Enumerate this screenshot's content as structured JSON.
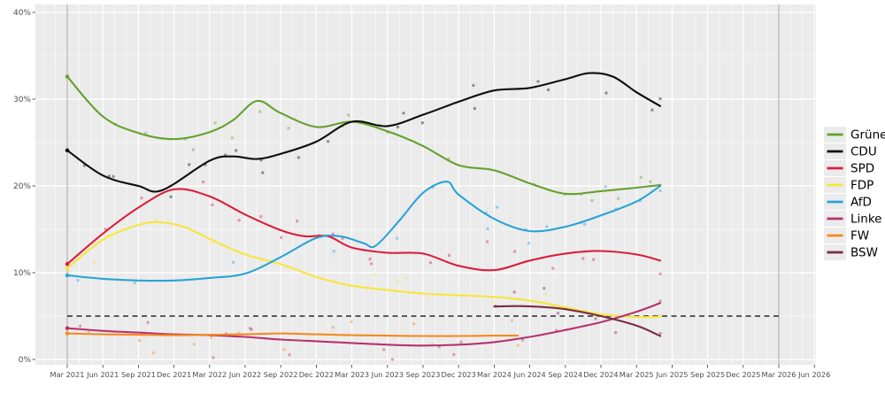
{
  "page": {
    "background": "#FFFFFF"
  },
  "chart_data": {
    "type": "line",
    "title": "",
    "description": "German state election polling trend chart (smoothed party lines with individual poll dots), March 2021 to June 2025, axis extending to June 2026",
    "panel_bg": "#EBEBEB",
    "grid_color": "#FFFFFF",
    "tick_color": "#333333",
    "tick_label_color": "#4D4D4D",
    "x_axis": {
      "tick_months": [
        0,
        3,
        6,
        9,
        12,
        15,
        18,
        21,
        24,
        27,
        30,
        33,
        36,
        39,
        42,
        45,
        48,
        51,
        54,
        57,
        60,
        63
      ],
      "tick_labels": [
        "Mar 2021",
        "Jun 2021",
        "Sep 2021",
        "Dec 2021",
        "Mar 2022",
        "Jun 2022",
        "Sep 2022",
        "Dec 2022",
        "Mar 2023",
        "Jun 2023",
        "Sep 2023",
        "Dec 2023",
        "Mar 2024",
        "Jun 2024",
        "Sep 2024",
        "Dec 2024",
        "Mar 2025",
        "Jun 2025",
        "Sep 2025",
        "Dec 2025",
        "Mar 2026",
        "Jun 2026"
      ]
    },
    "y_axis": {
      "tick_values": [
        0,
        10,
        20,
        30,
        40
      ],
      "tick_labels": [
        "0%",
        "10%",
        "20%",
        "30%",
        "40%"
      ],
      "minor_values": [
        5,
        15,
        25,
        35
      ],
      "ylim": [
        0,
        40
      ]
    },
    "threshold_line": {
      "value": 5,
      "style": "dashed",
      "color": "#2B2B2B",
      "from_month": 0,
      "to_month": 60
    },
    "event_lines": {
      "months": [
        0,
        60
      ],
      "color": "#A6A6A6"
    },
    "scatter": {
      "opacity": 0.42,
      "radius": 1.7,
      "seed": 42,
      "prob": 0.36,
      "y_jitter": 2.2,
      "x_jitter": 1.6
    },
    "series": [
      {
        "id": "gruene",
        "name": "Grüne",
        "color": "#64A12D",
        "points": [
          [
            0,
            32.6
          ],
          [
            3,
            28
          ],
          [
            6,
            26.1
          ],
          [
            9,
            25.4
          ],
          [
            12,
            26.2
          ],
          [
            14,
            27.6
          ],
          [
            16,
            29.8
          ],
          [
            18,
            28.4
          ],
          [
            21,
            26.8
          ],
          [
            24,
            27.4
          ],
          [
            27,
            26.3
          ],
          [
            30,
            24.6
          ],
          [
            33,
            22.4
          ],
          [
            36,
            21.8
          ],
          [
            39,
            20.3
          ],
          [
            42,
            19.1
          ],
          [
            45,
            19.4
          ],
          [
            48,
            19.8
          ],
          [
            50,
            20.1
          ]
        ]
      },
      {
        "id": "cdu",
        "name": "CDU",
        "color": "#0E0E0E",
        "points": [
          [
            0,
            24.1
          ],
          [
            3,
            21.2
          ],
          [
            6,
            20
          ],
          [
            8,
            19.5
          ],
          [
            12,
            22.9
          ],
          [
            14,
            23.4
          ],
          [
            16,
            23.1
          ],
          [
            18,
            23.7
          ],
          [
            21,
            25.1
          ],
          [
            24,
            27.4
          ],
          [
            27,
            26.9
          ],
          [
            30,
            28.2
          ],
          [
            33,
            29.7
          ],
          [
            36,
            31
          ],
          [
            39,
            31.3
          ],
          [
            42,
            32.3
          ],
          [
            44,
            33
          ],
          [
            46,
            32.6
          ],
          [
            48,
            30.8
          ],
          [
            50,
            29.2
          ]
        ]
      },
      {
        "id": "spd",
        "name": "SPD",
        "color": "#D91F3D",
        "points": [
          [
            0,
            11
          ],
          [
            3,
            14.5
          ],
          [
            6,
            17.5
          ],
          [
            9,
            19.6
          ],
          [
            12,
            18.8
          ],
          [
            15,
            16.7
          ],
          [
            18,
            14.9
          ],
          [
            20,
            14.2
          ],
          [
            22,
            14.2
          ],
          [
            24,
            12.9
          ],
          [
            27,
            12.3
          ],
          [
            30,
            12.2
          ],
          [
            33,
            10.8
          ],
          [
            36,
            10.3
          ],
          [
            39,
            11.4
          ],
          [
            42,
            12.2
          ],
          [
            45,
            12.5
          ],
          [
            48,
            12.1
          ],
          [
            50,
            11.4
          ]
        ]
      },
      {
        "id": "fdp",
        "name": "FDP",
        "color": "#F7E63C",
        "points": [
          [
            0,
            10.5
          ],
          [
            3,
            13.8
          ],
          [
            6,
            15.5
          ],
          [
            8,
            15.8
          ],
          [
            10,
            15.2
          ],
          [
            12,
            13.9
          ],
          [
            15,
            12.1
          ],
          [
            18,
            11
          ],
          [
            21,
            9.5
          ],
          [
            24,
            8.5
          ],
          [
            27,
            8
          ],
          [
            30,
            7.6
          ],
          [
            33,
            7.4
          ],
          [
            36,
            7.2
          ],
          [
            39,
            6.8
          ],
          [
            42,
            6
          ],
          [
            45,
            5.2
          ],
          [
            48,
            4.9
          ],
          [
            50,
            4.9
          ]
        ]
      },
      {
        "id": "afd",
        "name": "AfD",
        "color": "#29A3D8",
        "points": [
          [
            0,
            9.7
          ],
          [
            3,
            9.3
          ],
          [
            6,
            9.1
          ],
          [
            9,
            9.1
          ],
          [
            12,
            9.4
          ],
          [
            15,
            9.9
          ],
          [
            18,
            11.8
          ],
          [
            21,
            14
          ],
          [
            23,
            14.2
          ],
          [
            25,
            13.4
          ],
          [
            26,
            13.1
          ],
          [
            28,
            16
          ],
          [
            30,
            19.2
          ],
          [
            32,
            20.5
          ],
          [
            33,
            19
          ],
          [
            36,
            16.2
          ],
          [
            39,
            14.8
          ],
          [
            42,
            15.3
          ],
          [
            45,
            16.6
          ],
          [
            48,
            18.2
          ],
          [
            50,
            20
          ]
        ]
      },
      {
        "id": "linke",
        "name": "Linke",
        "color": "#B5336F",
        "points": [
          [
            0,
            3.6
          ],
          [
            3,
            3.3
          ],
          [
            6,
            3.1
          ],
          [
            9,
            2.9
          ],
          [
            12,
            2.8
          ],
          [
            15,
            2.6
          ],
          [
            18,
            2.3
          ],
          [
            21,
            2.1
          ],
          [
            24,
            1.9
          ],
          [
            27,
            1.7
          ],
          [
            30,
            1.6
          ],
          [
            33,
            1.7
          ],
          [
            36,
            2
          ],
          [
            39,
            2.6
          ],
          [
            42,
            3.4
          ],
          [
            45,
            4.3
          ],
          [
            48,
            5.5
          ],
          [
            50,
            6.5
          ]
        ]
      },
      {
        "id": "fw",
        "name": "FW",
        "color": "#F68920",
        "points": [
          [
            0,
            3
          ],
          [
            3,
            2.9
          ],
          [
            6,
            2.85
          ],
          [
            9,
            2.8
          ],
          [
            12,
            2.85
          ],
          [
            15,
            2.9
          ],
          [
            18,
            3
          ],
          [
            21,
            2.9
          ],
          [
            24,
            2.8
          ],
          [
            27,
            2.75
          ],
          [
            30,
            2.7
          ],
          [
            33,
            2.7
          ],
          [
            36,
            2.75
          ],
          [
            38,
            2.75
          ]
        ]
      },
      {
        "id": "bsw",
        "name": "BSW",
        "color": "#7A2B45",
        "points": [
          [
            36,
            6.1
          ],
          [
            38,
            6.15
          ],
          [
            40,
            6.05
          ],
          [
            42,
            5.8
          ],
          [
            45,
            5
          ],
          [
            48,
            3.9
          ],
          [
            50,
            2.7
          ]
        ]
      }
    ],
    "election_result_dots_month": 0,
    "legend": {
      "position": "right",
      "entries": [
        "Grüne",
        "CDU",
        "SPD",
        "FDP",
        "AfD",
        "Linke",
        "FW",
        "BSW"
      ]
    }
  }
}
